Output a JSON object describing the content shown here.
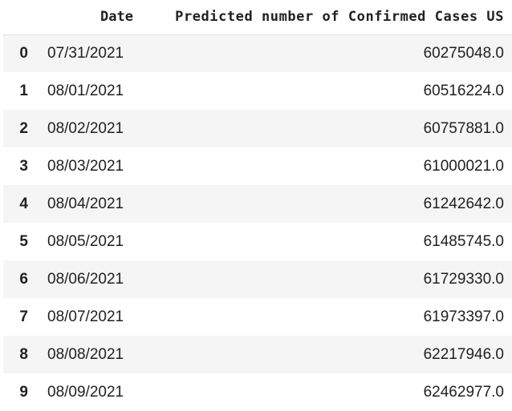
{
  "table": {
    "columns": [
      "",
      "Date",
      "Predicted number of Confirmed Cases US"
    ],
    "rows": [
      {
        "index": "0",
        "date": "07/31/2021",
        "value": "60275048.0"
      },
      {
        "index": "1",
        "date": "08/01/2021",
        "value": "60516224.0"
      },
      {
        "index": "2",
        "date": "08/02/2021",
        "value": "60757881.0"
      },
      {
        "index": "3",
        "date": "08/03/2021",
        "value": "61000021.0"
      },
      {
        "index": "4",
        "date": "08/04/2021",
        "value": "61242642.0"
      },
      {
        "index": "5",
        "date": "08/05/2021",
        "value": "61485745.0"
      },
      {
        "index": "6",
        "date": "08/06/2021",
        "value": "61729330.0"
      },
      {
        "index": "7",
        "date": "08/07/2021",
        "value": "61973397.0"
      },
      {
        "index": "8",
        "date": "08/08/2021",
        "value": "62217946.0"
      },
      {
        "index": "9",
        "date": "08/09/2021",
        "value": "62462977.0"
      }
    ]
  },
  "colors": {
    "text": "#212121",
    "striped_row": "#f5f5f5",
    "header_rule": "#e0e0e0",
    "background": "#ffffff"
  }
}
